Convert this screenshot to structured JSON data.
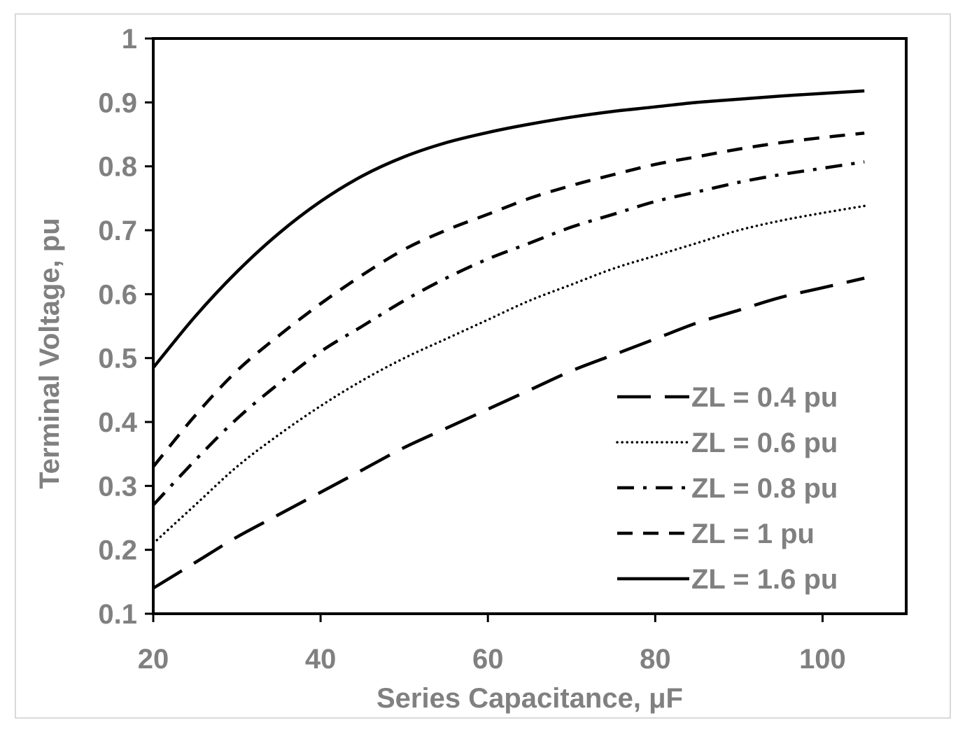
{
  "chart_data": {
    "type": "line",
    "title": "",
    "xlabel": "Series Capacitance, μF",
    "ylabel": "Terminal Voltage, pu",
    "xlim": [
      20,
      110
    ],
    "ylim": [
      0.1,
      1.0
    ],
    "x_ticks": [
      20,
      40,
      60,
      80,
      100
    ],
    "y_ticks": [
      0.1,
      0.2,
      0.3,
      0.4,
      0.5,
      0.6,
      0.7,
      0.8,
      0.9,
      1
    ],
    "grid": false,
    "legend_position": "bottom-right",
    "x": [
      20,
      25,
      30,
      35,
      40,
      45,
      50,
      55,
      60,
      65,
      70,
      75,
      80,
      85,
      90,
      95,
      100,
      105
    ],
    "series": [
      {
        "name": "ZL = 0.4 pu",
        "dash": "long-dash",
        "values": [
          0.14,
          0.18,
          0.22,
          0.255,
          0.29,
          0.325,
          0.36,
          0.39,
          0.42,
          0.45,
          0.48,
          0.505,
          0.53,
          0.555,
          0.575,
          0.595,
          0.61,
          0.625
        ]
      },
      {
        "name": "ZL = 0.6 pu",
        "dash": "dotted",
        "values": [
          0.21,
          0.27,
          0.33,
          0.38,
          0.425,
          0.465,
          0.5,
          0.53,
          0.56,
          0.59,
          0.615,
          0.64,
          0.66,
          0.68,
          0.7,
          0.715,
          0.727,
          0.738
        ]
      },
      {
        "name": "ZL = 0.8 pu",
        "dash": "dash-dot",
        "values": [
          0.27,
          0.34,
          0.405,
          0.46,
          0.51,
          0.55,
          0.59,
          0.625,
          0.655,
          0.68,
          0.705,
          0.725,
          0.745,
          0.76,
          0.775,
          0.787,
          0.797,
          0.807
        ]
      },
      {
        "name": "ZL = 1 pu",
        "dash": "short-dash",
        "values": [
          0.33,
          0.41,
          0.48,
          0.535,
          0.585,
          0.63,
          0.67,
          0.7,
          0.725,
          0.75,
          0.77,
          0.787,
          0.803,
          0.815,
          0.827,
          0.837,
          0.845,
          0.852
        ]
      },
      {
        "name": "ZL = 1.6 pu",
        "dash": "solid",
        "values": [
          0.485,
          0.565,
          0.635,
          0.695,
          0.745,
          0.785,
          0.815,
          0.837,
          0.853,
          0.866,
          0.877,
          0.886,
          0.893,
          0.9,
          0.905,
          0.91,
          0.914,
          0.918
        ]
      }
    ],
    "colors": {
      "lines": "#000000",
      "text": "#808080",
      "frame": "#000000",
      "outer_border": "#d9d9d9"
    }
  }
}
